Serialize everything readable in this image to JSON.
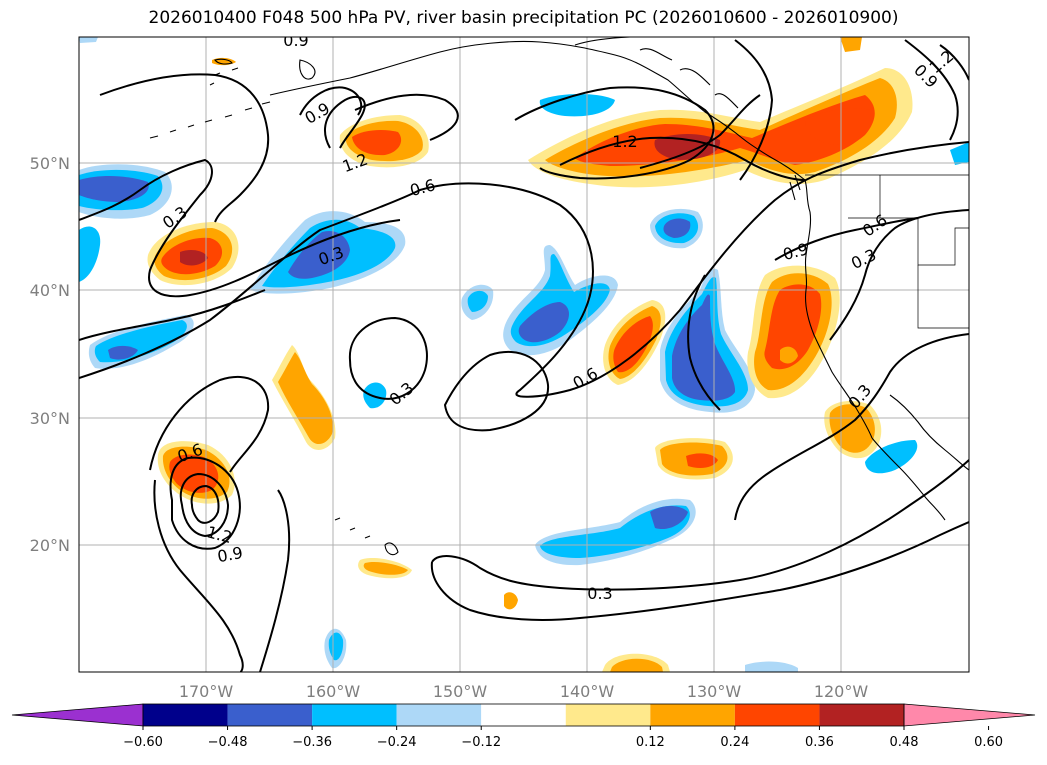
{
  "title": "2026010400 F048 500 hPa PV, river basin precipitation PC (2026010600 - 2026010900)",
  "axes": {
    "lat_labels": [
      "50°N",
      "40°N",
      "30°N",
      "20°N"
    ],
    "lon_labels": [
      "170°W",
      "160°W",
      "150°W",
      "140°W",
      "130°W",
      "120°W"
    ]
  },
  "contour_labels": [
    "0.9",
    "1.2",
    "0.9",
    "1.2",
    "0.9",
    "1.2",
    "0.3",
    "0.6",
    "0.3",
    "0.9",
    "0.6",
    "0.3",
    "0.3",
    "0.6",
    "0.6",
    "1.2",
    "0.9",
    "0.3",
    "0.3"
  ],
  "colorbar": {
    "ticks": [
      "−0.60",
      "−0.48",
      "−0.36",
      "−0.24",
      "−0.12",
      "0.12",
      "0.24",
      "0.36",
      "0.48",
      "0.60"
    ],
    "colors": [
      "#9b30d0",
      "#00008b",
      "#3a5fcd",
      "#00bfff",
      "#add8f7",
      "#ffffff",
      "#ffe98c",
      "#ffa500",
      "#ff4500",
      "#b22222",
      "#ff88aa"
    ]
  }
}
